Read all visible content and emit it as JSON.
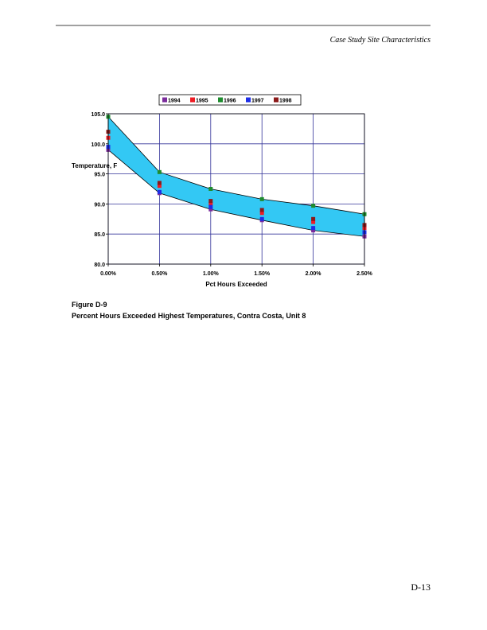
{
  "header": {
    "title": "Case Study Site Characteristics"
  },
  "chart_data": {
    "type": "area-band",
    "ylabel": "Temperature, F",
    "xlabel": "Pct Hours Exceeded",
    "x": [
      0,
      0.5,
      1,
      1.5,
      2,
      2.5
    ],
    "xlim": [
      0,
      2.5
    ],
    "xticks": [
      {
        "value": 0,
        "label": "0.00%"
      },
      {
        "value": 0.5,
        "label": "0.50%"
      },
      {
        "value": 1,
        "label": "1.00%"
      },
      {
        "value": 1.5,
        "label": "1.50%"
      },
      {
        "value": 2,
        "label": "2.00%"
      },
      {
        "value": 2.5,
        "label": "2.50%"
      }
    ],
    "ylim": [
      80,
      105
    ],
    "yticks": [
      {
        "value": 80,
        "label": "80.0"
      },
      {
        "value": 85,
        "label": "85.0"
      },
      {
        "value": 90,
        "label": "90.0"
      },
      {
        "value": 95,
        "label": "95.0"
      },
      {
        "value": 100,
        "label": "100.0"
      },
      {
        "value": 105,
        "label": "105.0"
      }
    ],
    "grid": true,
    "band_color": "#33c8f4",
    "series": [
      {
        "name": "1994",
        "color": "#7b2c9c",
        "values": [
          99,
          91.8,
          89.1,
          87.3,
          85.6,
          84.6
        ]
      },
      {
        "name": "1995",
        "color": "#ee1c24",
        "values": [
          101,
          93,
          90,
          88.5,
          87,
          86
        ]
      },
      {
        "name": "1996",
        "color": "#1e8c2e",
        "values": [
          104.5,
          95.3,
          92.5,
          90.8,
          89.7,
          88.3
        ]
      },
      {
        "name": "1997",
        "color": "#1d2ee8",
        "values": [
          99.5,
          92,
          89.5,
          87.5,
          86,
          85.3
        ]
      },
      {
        "name": "1998",
        "color": "#8b1a1a",
        "values": [
          102,
          93.5,
          90.5,
          89,
          87.5,
          86.5
        ]
      }
    ]
  },
  "caption": {
    "number": "Figure D-9",
    "title": "Percent Hours Exceeded Highest Temperatures, Contra Costa, Unit 8"
  },
  "page_number": "D-13"
}
